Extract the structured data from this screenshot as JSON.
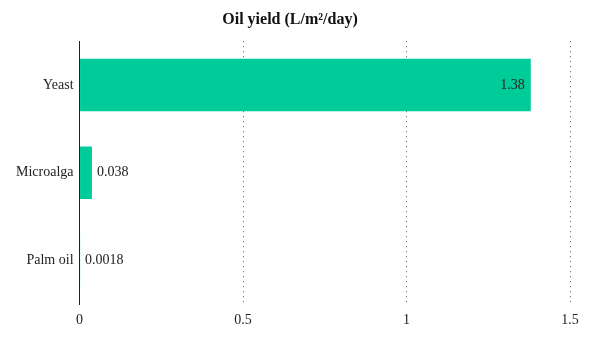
{
  "chart_data": {
    "type": "bar",
    "title": "Oil yield (L/m²/day)",
    "orientation": "horizontal",
    "categories": [
      "Yeast",
      "Microalga",
      "Palm oil"
    ],
    "values": [
      1.38,
      0.038,
      0.0018
    ],
    "color": "#00cc99",
    "xlim": [
      0,
      1.5
    ],
    "xticks": [
      0,
      0.5,
      1,
      1.5
    ],
    "grid": true,
    "data_labels": true
  }
}
